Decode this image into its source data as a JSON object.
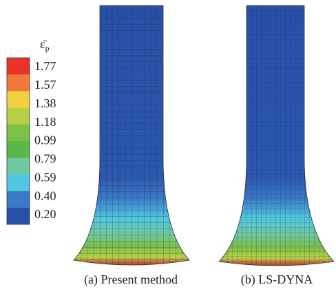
{
  "legend": {
    "symbol": "ε̄",
    "subscript": "p",
    "ticks": [
      "1.77",
      "1.57",
      "1.38",
      "1.18",
      "0.99",
      "0.79",
      "0.59",
      "0.40",
      "0.20"
    ],
    "colors": [
      "#e8322a",
      "#f07a3a",
      "#f2d040",
      "#b8d048",
      "#7cc048",
      "#5ab84a",
      "#6ec8a0",
      "#50c8e0",
      "#3c78c8",
      "#2850a8"
    ]
  },
  "captions": [
    "(a) Present method",
    "(b) LS-DYNA"
  ]
}
